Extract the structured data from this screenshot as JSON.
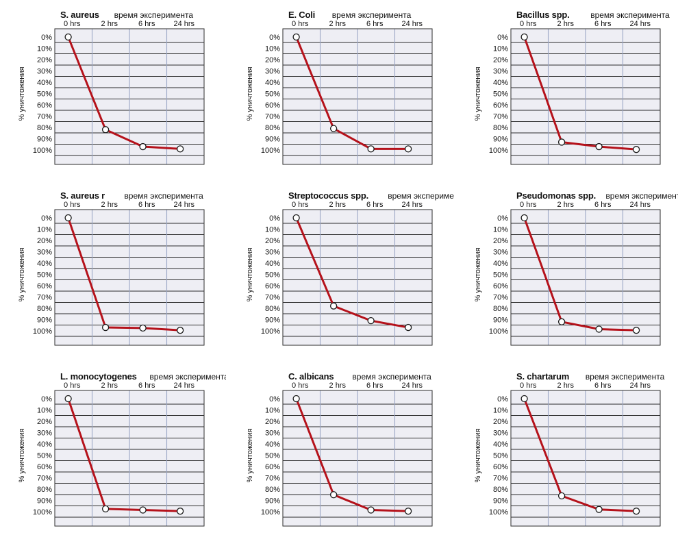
{
  "chart_data": [
    {
      "type": "line",
      "title": "S. aureus",
      "subtitle": "время эксперимента",
      "ylabel": "% уничтожения",
      "categories": [
        "0 hrs",
        "2 hrs",
        "6 hrs",
        "24 hrs"
      ],
      "y_ticks": [
        "0%",
        "10%",
        "20%",
        "30%",
        "40%",
        "50%",
        "60%",
        "70%",
        "80%",
        "90%",
        "100%"
      ],
      "ylim": [
        0,
        100
      ],
      "y_inverted": true,
      "grid": true,
      "values": [
        0,
        82,
        97,
        99
      ],
      "color": "#b5121b"
    },
    {
      "type": "line",
      "title": "E. Coli",
      "subtitle": "время эксперимента",
      "ylabel": "% уничтожения",
      "categories": [
        "0 hrs",
        "2 hrs",
        "6 hrs",
        "24 hrs"
      ],
      "y_ticks": [
        "0%",
        "10%",
        "20%",
        "30%",
        "40%",
        "50%",
        "60%",
        "70%",
        "80%",
        "90%",
        "100%"
      ],
      "ylim": [
        0,
        100
      ],
      "y_inverted": true,
      "grid": true,
      "values": [
        0,
        81,
        99,
        99
      ],
      "color": "#b5121b"
    },
    {
      "type": "line",
      "title": "Bacillus spp.",
      "subtitle": "время эксперимента",
      "ylabel": "% уничтожения",
      "categories": [
        "0 hrs",
        "2 hrs",
        "6 hrs",
        "24 hrs"
      ],
      "y_ticks": [
        "0%",
        "10%",
        "20%",
        "30%",
        "40%",
        "50%",
        "60%",
        "70%",
        "80%",
        "90%",
        "100%"
      ],
      "ylim": [
        0,
        100
      ],
      "y_inverted": true,
      "grid": true,
      "values": [
        0,
        93,
        97,
        99.5
      ],
      "color": "#b5121b"
    },
    {
      "type": "line",
      "title": "S. aureus r",
      "subtitle": "время эксперимента",
      "ylabel": "% уничтожения",
      "categories": [
        "0 hrs",
        "2 hrs",
        "6 hrs",
        "24 hrs"
      ],
      "y_ticks": [
        "0%",
        "10%",
        "20%",
        "30%",
        "40%",
        "50%",
        "60%",
        "70%",
        "80%",
        "90%",
        "100%"
      ],
      "ylim": [
        0,
        100
      ],
      "y_inverted": true,
      "grid": true,
      "values": [
        0,
        97,
        97.5,
        99.5
      ],
      "color": "#b5121b"
    },
    {
      "type": "line",
      "title": "Streptococcus spp.",
      "subtitle": "время эксперимента",
      "ylabel": "% уничтожения",
      "categories": [
        "0 hrs",
        "2 hrs",
        "6 hrs",
        "24 hrs"
      ],
      "y_ticks": [
        "0%",
        "10%",
        "20%",
        "30%",
        "40%",
        "50%",
        "60%",
        "70%",
        "80%",
        "90%",
        "100%"
      ],
      "ylim": [
        0,
        100
      ],
      "y_inverted": true,
      "grid": true,
      "values": [
        0,
        78,
        91,
        97
      ],
      "color": "#b5121b"
    },
    {
      "type": "line",
      "title": "Pseudomonas spp.",
      "subtitle": "время эксперимента",
      "ylabel": "% уничтожения",
      "categories": [
        "0 hrs",
        "2 hrs",
        "6 hrs",
        "24 hrs"
      ],
      "y_ticks": [
        "0%",
        "10%",
        "20%",
        "30%",
        "40%",
        "50%",
        "60%",
        "70%",
        "80%",
        "90%",
        "100%"
      ],
      "ylim": [
        0,
        100
      ],
      "y_inverted": true,
      "grid": true,
      "values": [
        0,
        92,
        98.5,
        99.5
      ],
      "color": "#b5121b"
    },
    {
      "type": "line",
      "title": "L. monocytogenes",
      "subtitle": "время эксперимента",
      "ylabel": "% уничтожения",
      "categories": [
        "0 hrs",
        "2 hrs",
        "6 hrs",
        "24 hrs"
      ],
      "y_ticks": [
        "0%",
        "10%",
        "20%",
        "30%",
        "40%",
        "50%",
        "60%",
        "70%",
        "80%",
        "90%",
        "100%"
      ],
      "ylim": [
        0,
        100
      ],
      "y_inverted": true,
      "grid": true,
      "values": [
        0,
        97.5,
        98.5,
        99.5
      ],
      "color": "#b5121b"
    },
    {
      "type": "line",
      "title": "C. albicans",
      "subtitle": "время эксперимента",
      "ylabel": "% уничтожения",
      "categories": [
        "0 hrs",
        "2 hrs",
        "6 hrs",
        "24 hrs"
      ],
      "y_ticks": [
        "0%",
        "10%",
        "20%",
        "30%",
        "40%",
        "50%",
        "60%",
        "70%",
        "80%",
        "90%",
        "100%"
      ],
      "ylim": [
        0,
        100
      ],
      "y_inverted": true,
      "grid": true,
      "values": [
        0,
        85,
        98.5,
        99.5
      ],
      "color": "#b5121b"
    },
    {
      "type": "line",
      "title": "S. chartarum",
      "subtitle": "время эксперимента",
      "ylabel": "% уничтожения",
      "categories": [
        "0 hrs",
        "2 hrs",
        "6 hrs",
        "24 hrs"
      ],
      "y_ticks": [
        "0%",
        "10%",
        "20%",
        "30%",
        "40%",
        "50%",
        "60%",
        "70%",
        "80%",
        "90%",
        "100%"
      ],
      "ylim": [
        0,
        100
      ],
      "y_inverted": true,
      "grid": true,
      "values": [
        0,
        86,
        98,
        99.5
      ],
      "color": "#b5121b"
    }
  ]
}
